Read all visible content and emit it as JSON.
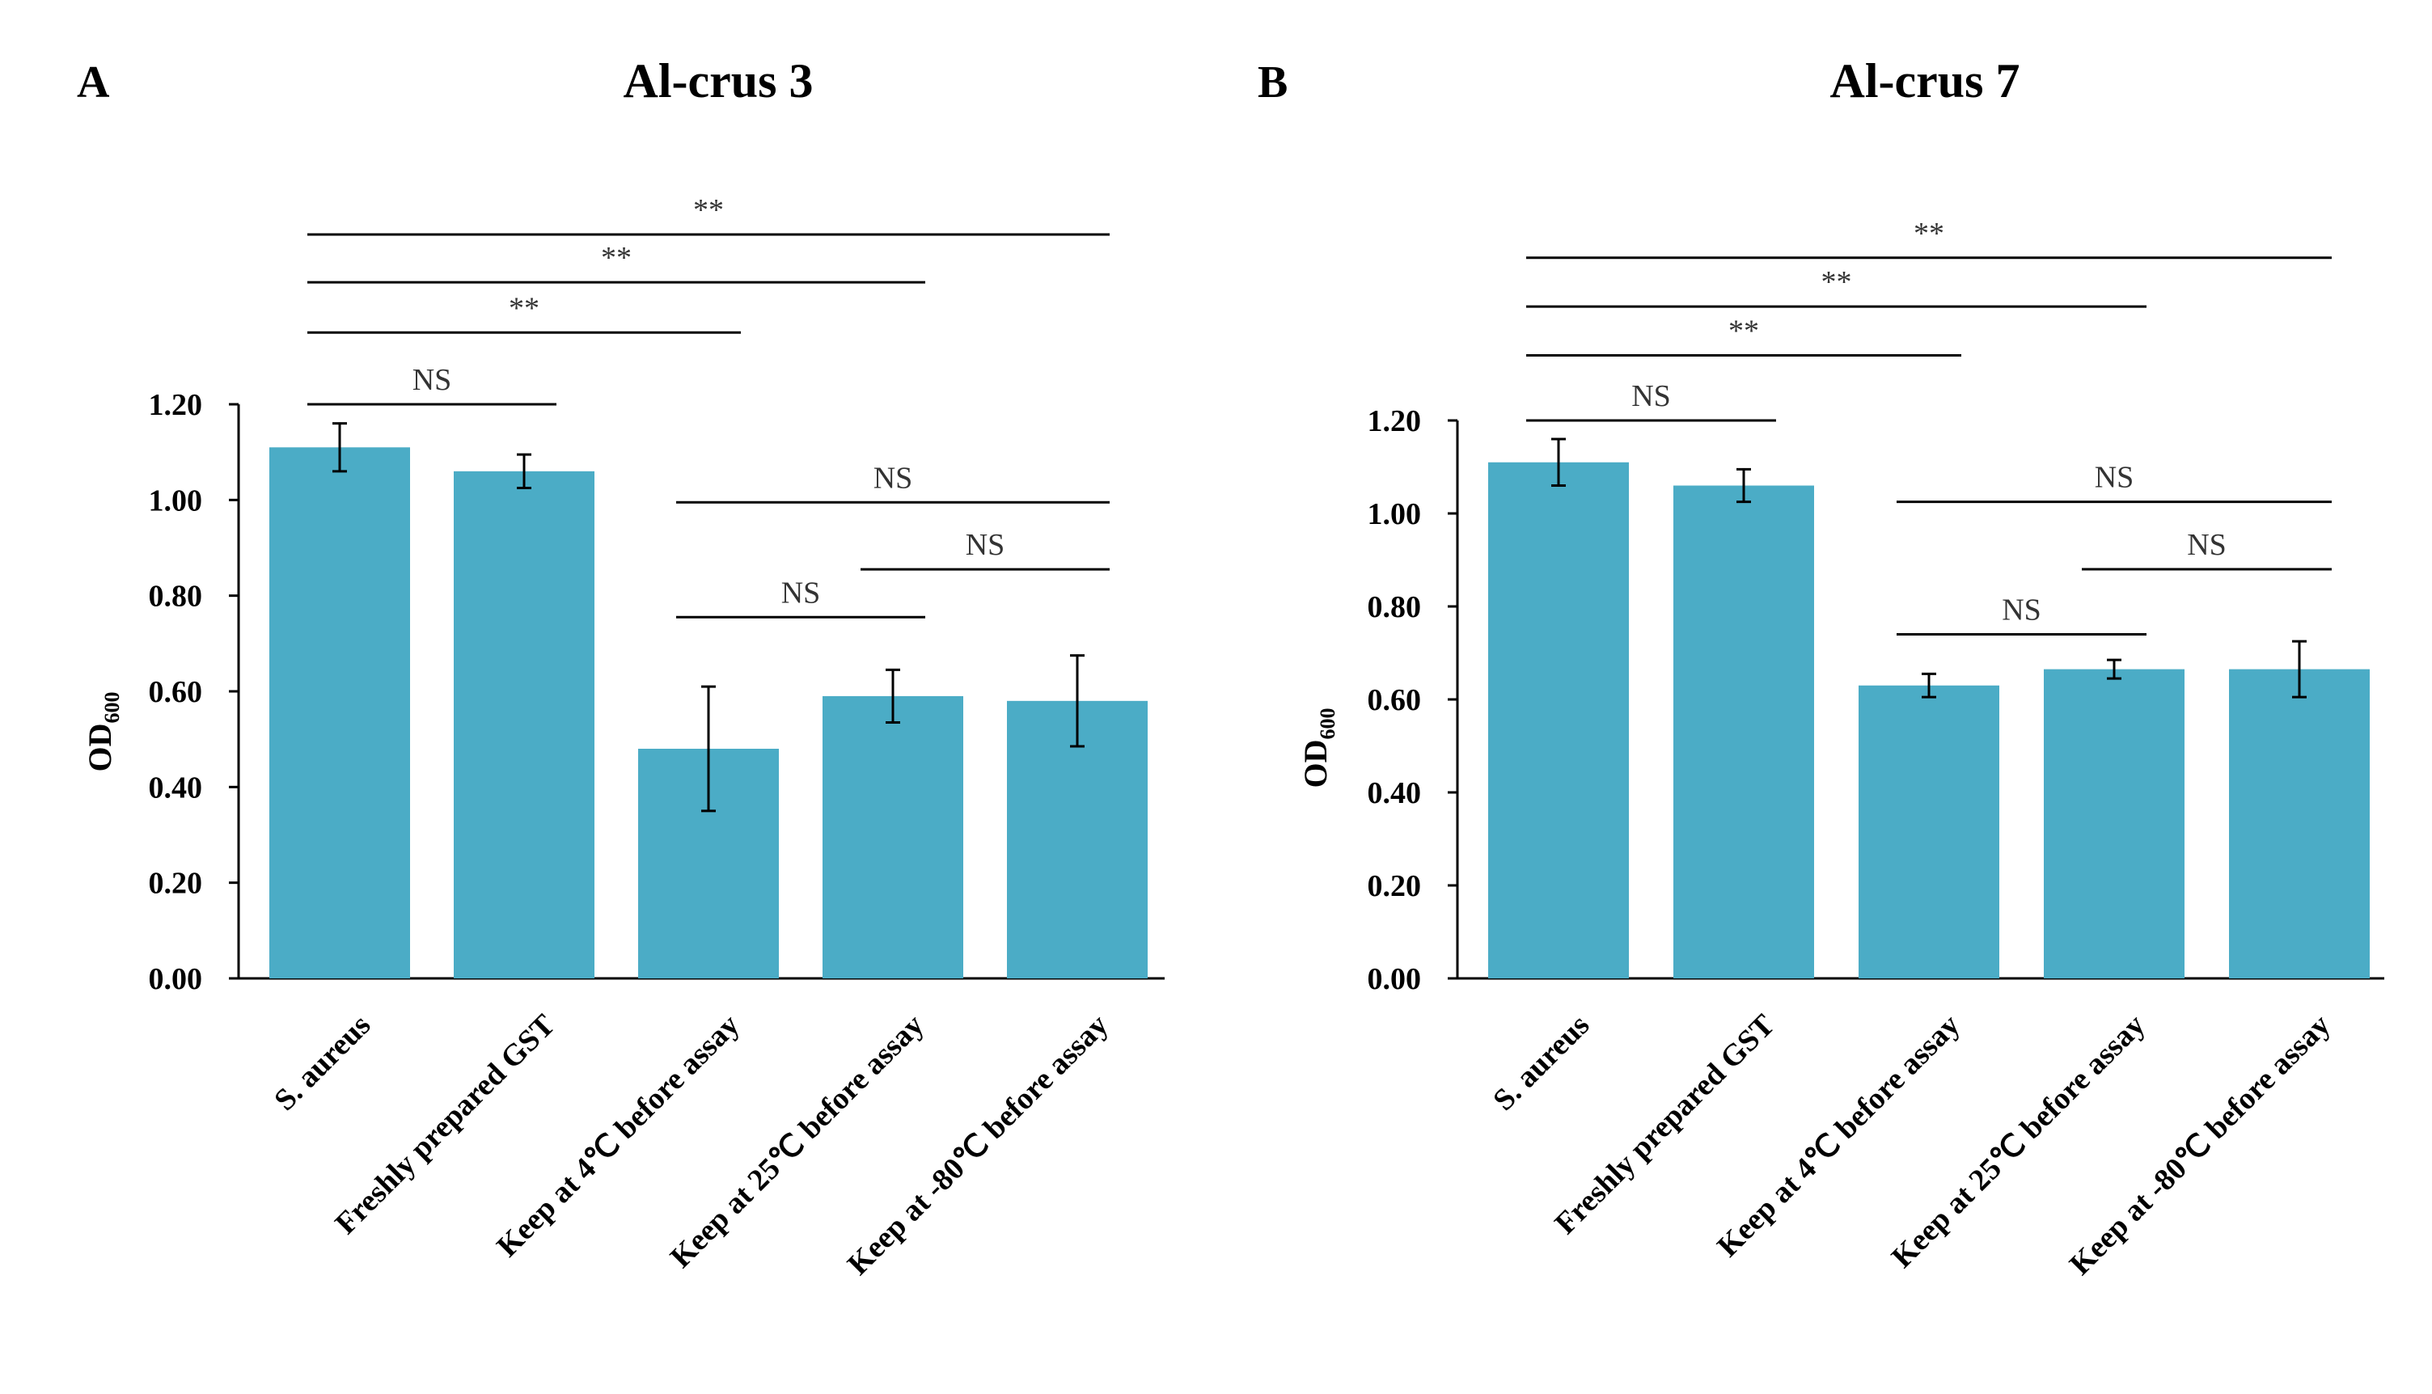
{
  "chart_data": [
    {
      "panel": "A",
      "type": "bar",
      "title": "Al-crus 3",
      "ylabel": "OD",
      "ylabel_sub": "600",
      "ylim": [
        0,
        1.2
      ],
      "yticks": [
        "0.00",
        "0.20",
        "0.40",
        "0.60",
        "0.80",
        "1.00",
        "1.20"
      ],
      "categories": [
        "S. aureus",
        "Freshly prepared GST",
        "Keep at 4℃ before assay",
        "Keep at 25℃ before assay",
        "Keep at -80℃ before assay"
      ],
      "values": [
        1.11,
        1.06,
        0.48,
        0.59,
        0.58
      ],
      "errors": [
        0.05,
        0.035,
        0.13,
        0.055,
        0.095
      ],
      "bar_color": "#4bacc6",
      "significance": [
        {
          "from": 0,
          "to": 1,
          "label": "NS",
          "level": 1.2
        },
        {
          "from": 0,
          "to": 2,
          "label": "**",
          "level": 1.35
        },
        {
          "from": 0,
          "to": 3,
          "label": "**",
          "level": 1.455
        },
        {
          "from": 0,
          "to": 4,
          "label": "**",
          "level": 1.555
        },
        {
          "from": 2,
          "to": 3,
          "label": "NS",
          "level": 0.755
        },
        {
          "from": 3,
          "to": 4,
          "label": "NS",
          "level": 0.855
        },
        {
          "from": 2,
          "to": 4,
          "label": "NS",
          "level": 0.995
        }
      ]
    },
    {
      "panel": "B",
      "type": "bar",
      "title": "Al-crus 7",
      "ylabel": "OD",
      "ylabel_sub": "600",
      "ylim": [
        0,
        1.2
      ],
      "yticks": [
        "0.00",
        "0.20",
        "0.40",
        "0.60",
        "0.80",
        "1.00",
        "1.20"
      ],
      "categories": [
        "S. aureus",
        "Freshly prepared GST",
        "Keep at 4℃ before assay",
        "Keep at 25℃ before assay",
        "Keep at -80℃ before assay"
      ],
      "values": [
        1.11,
        1.06,
        0.63,
        0.665,
        0.665
      ],
      "errors": [
        0.05,
        0.035,
        0.025,
        0.02,
        0.06
      ],
      "bar_color": "#4bacc6",
      "significance": [
        {
          "from": 0,
          "to": 1,
          "label": "NS",
          "level": 1.2
        },
        {
          "from": 0,
          "to": 2,
          "label": "**",
          "level": 1.34
        },
        {
          "from": 0,
          "to": 3,
          "label": "**",
          "level": 1.445
        },
        {
          "from": 0,
          "to": 4,
          "label": "**",
          "level": 1.55
        },
        {
          "from": 2,
          "to": 3,
          "label": "NS",
          "level": 0.74
        },
        {
          "from": 3,
          "to": 4,
          "label": "NS",
          "level": 0.88
        },
        {
          "from": 2,
          "to": 4,
          "label": "NS",
          "level": 1.025
        }
      ]
    }
  ]
}
